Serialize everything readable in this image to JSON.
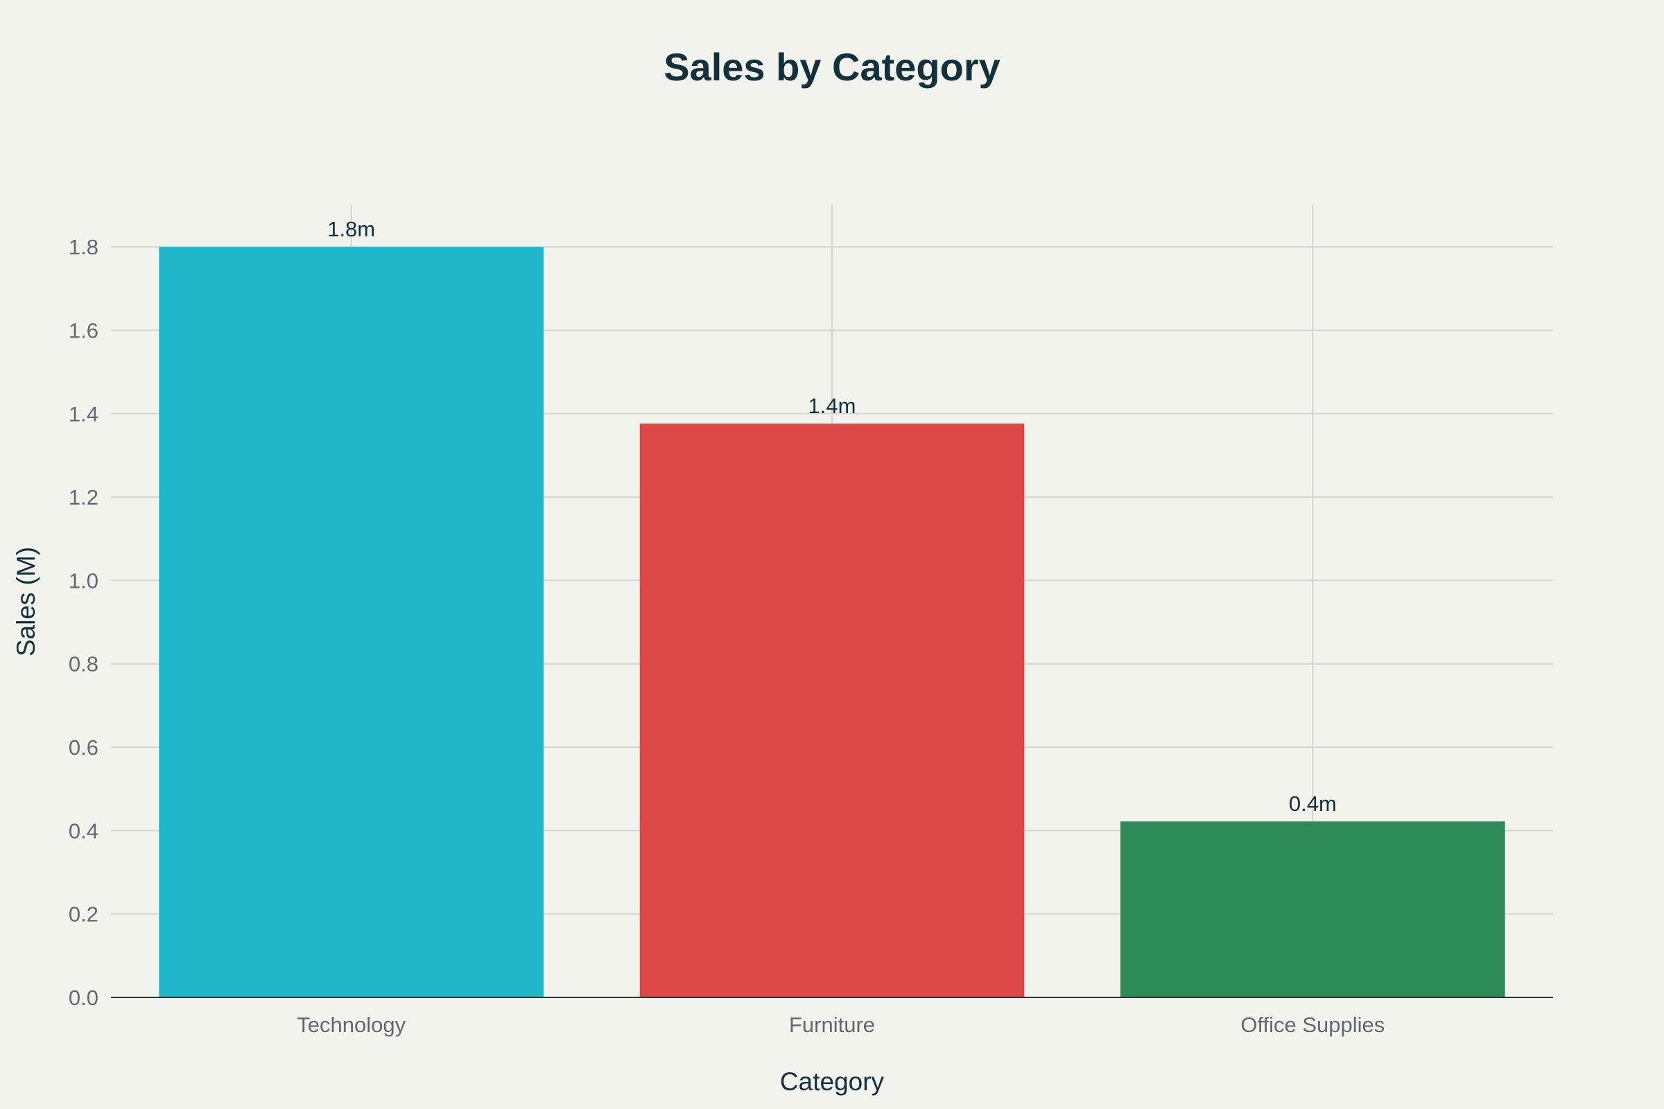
{
  "chart_data": {
    "type": "bar",
    "title": "Sales by Category",
    "xlabel": "Category",
    "ylabel": "Sales (M)",
    "categories": [
      "Technology",
      "Furniture",
      "Office Supplies"
    ],
    "values": [
      1.8,
      1.376,
      0.422
    ],
    "data_labels": [
      "1.8m",
      "1.4m",
      "0.4m"
    ],
    "colors": [
      "#21b7cb",
      "#dc4747",
      "#2e8a57"
    ],
    "ylim": [
      0,
      1.9
    ],
    "yticks": [
      0,
      0.2,
      0.4,
      0.6,
      0.8,
      1.0,
      1.2,
      1.4,
      1.6,
      1.8
    ],
    "ytick_labels": [
      "0.0",
      "0.2",
      "0.4",
      "0.6",
      "0.8",
      "1.0",
      "1.2",
      "1.4",
      "1.6",
      "1.8"
    ],
    "grid": true,
    "legend": "none"
  }
}
